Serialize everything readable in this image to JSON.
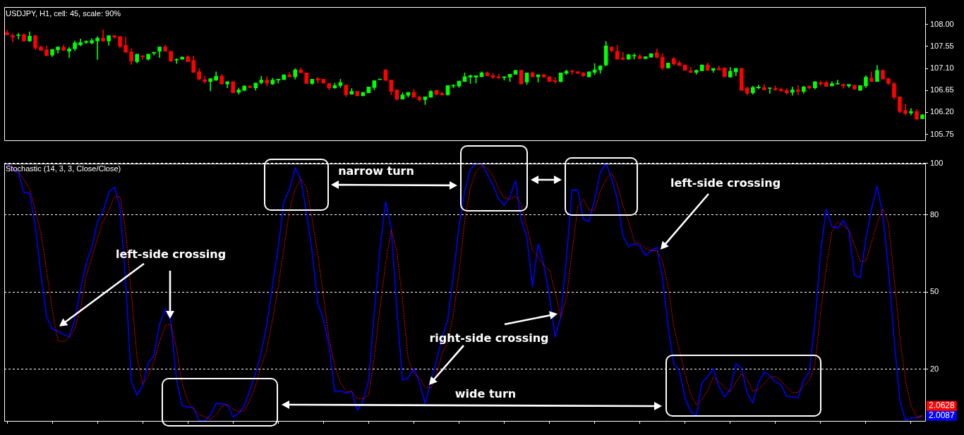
{
  "chart_data": [
    {
      "type": "candlestick",
      "title": "USDJPY, H1, cell: 45, scale: 90%",
      "categories": [
        null,
        null,
        null,
        null,
        null,
        null,
        null,
        null,
        null,
        null,
        null,
        null,
        null,
        null,
        null,
        null,
        null,
        null,
        null,
        null,
        null,
        null,
        null,
        null,
        null,
        null,
        null,
        null,
        null,
        null,
        null,
        null,
        null,
        null,
        null,
        null,
        null,
        null,
        null,
        null,
        null,
        null,
        null,
        null,
        null,
        null,
        null,
        null,
        null,
        null,
        null,
        null,
        null,
        null,
        null,
        null,
        null,
        null,
        null,
        null,
        null,
        null,
        null,
        null,
        null,
        null,
        null,
        null,
        null,
        null,
        null,
        null,
        null,
        null,
        null,
        null,
        null,
        null,
        null,
        null,
        null,
        null,
        null,
        null,
        null,
        null,
        null,
        null,
        null,
        null,
        null,
        null,
        null,
        null,
        null,
        null,
        null,
        null,
        null,
        null,
        null,
        null,
        null,
        null,
        null,
        null,
        null,
        null,
        null,
        null,
        null,
        null,
        null,
        null,
        null,
        null,
        null,
        null,
        null,
        null,
        null,
        null,
        null,
        null,
        null,
        null,
        null,
        null,
        null,
        null,
        null,
        null,
        null,
        null,
        null,
        null,
        null,
        null,
        null,
        null,
        null,
        null,
        null,
        null,
        null,
        null,
        null,
        null,
        null,
        null,
        null,
        null,
        null,
        null,
        null,
        null,
        null,
        null,
        null,
        null,
        null,
        null,
        null
      ],
      "ohlc": [
        [
          107.83,
          107.88,
          107.78,
          107.79
        ],
        [
          107.77,
          107.81,
          107.64,
          107.74
        ],
        [
          107.77,
          107.82,
          107.7,
          107.77
        ],
        [
          107.79,
          107.81,
          107.66,
          107.66
        ],
        [
          107.66,
          107.85,
          107.65,
          107.76
        ],
        [
          107.77,
          107.77,
          107.48,
          107.52
        ],
        [
          107.54,
          107.56,
          107.47,
          107.47
        ],
        [
          107.48,
          107.56,
          107.36,
          107.36
        ],
        [
          107.37,
          107.49,
          107.34,
          107.49
        ],
        [
          107.48,
          107.54,
          107.41,
          107.54
        ],
        [
          107.53,
          107.58,
          107.47,
          107.47
        ],
        [
          107.45,
          107.53,
          107.32,
          107.5
        ],
        [
          107.5,
          107.66,
          107.46,
          107.62
        ],
        [
          107.58,
          107.7,
          107.56,
          107.63
        ],
        [
          107.63,
          107.67,
          107.61,
          107.65
        ],
        [
          107.62,
          107.71,
          107.6,
          107.67
        ],
        [
          107.66,
          107.75,
          107.28,
          107.72
        ],
        [
          107.72,
          107.89,
          107.65,
          107.66
        ],
        [
          107.66,
          107.77,
          107.57,
          107.77
        ],
        [
          107.77,
          107.77,
          107.71,
          107.74
        ],
        [
          107.75,
          107.75,
          107.52,
          107.55
        ],
        [
          107.57,
          107.74,
          107.43,
          107.43
        ],
        [
          107.44,
          107.5,
          107.18,
          107.25
        ],
        [
          107.24,
          107.39,
          107.21,
          107.39
        ],
        [
          107.36,
          107.36,
          107.28,
          107.34
        ],
        [
          107.29,
          107.39,
          107.27,
          107.39
        ],
        [
          107.41,
          107.43,
          107.37,
          107.43
        ],
        [
          107.45,
          107.54,
          107.32,
          107.54
        ],
        [
          107.54,
          107.58,
          107.45,
          107.45
        ],
        [
          107.45,
          107.45,
          107.24,
          107.25
        ],
        [
          107.27,
          107.3,
          107.2,
          107.28
        ],
        [
          107.29,
          107.34,
          107.28,
          107.33
        ],
        [
          107.34,
          107.36,
          107.24,
          107.24
        ],
        [
          107.26,
          107.35,
          107.02,
          107.02
        ],
        [
          107.03,
          107.1,
          106.86,
          106.88
        ],
        [
          106.87,
          106.94,
          106.8,
          106.83
        ],
        [
          106.83,
          106.89,
          106.64,
          106.89
        ],
        [
          106.86,
          107.03,
          106.85,
          106.94
        ],
        [
          106.94,
          106.98,
          106.78,
          106.78
        ],
        [
          106.78,
          106.83,
          106.7,
          106.83
        ],
        [
          106.83,
          106.83,
          106.6,
          106.6
        ],
        [
          106.61,
          106.7,
          106.57,
          106.66
        ],
        [
          106.65,
          106.75,
          106.64,
          106.74
        ],
        [
          106.74,
          106.75,
          106.7,
          106.71
        ],
        [
          106.7,
          106.8,
          106.65,
          106.8
        ],
        [
          106.81,
          106.94,
          106.78,
          106.86
        ],
        [
          106.86,
          106.93,
          106.74,
          106.8
        ],
        [
          106.78,
          106.9,
          106.77,
          106.86
        ],
        [
          106.86,
          106.88,
          106.8,
          106.88
        ],
        [
          106.87,
          106.97,
          106.87,
          106.97
        ],
        [
          106.97,
          107.02,
          106.93,
          106.93
        ],
        [
          106.93,
          107.1,
          106.88,
          107.07
        ],
        [
          107.07,
          107.11,
          107.01,
          107.01
        ],
        [
          107.01,
          107.01,
          106.79,
          106.79
        ],
        [
          106.79,
          106.88,
          106.77,
          106.88
        ],
        [
          106.89,
          106.92,
          106.8,
          106.86
        ],
        [
          106.88,
          106.88,
          106.8,
          106.8
        ],
        [
          106.79,
          106.8,
          106.66,
          106.7
        ],
        [
          106.7,
          106.8,
          106.69,
          106.75
        ],
        [
          106.75,
          106.88,
          106.71,
          106.81
        ],
        [
          106.76,
          106.76,
          106.52,
          106.56
        ],
        [
          106.57,
          106.69,
          106.57,
          106.63
        ],
        [
          106.63,
          106.63,
          106.54,
          106.54
        ],
        [
          106.54,
          106.61,
          106.54,
          106.61
        ],
        [
          106.6,
          106.72,
          106.6,
          106.72
        ],
        [
          106.71,
          106.85,
          106.66,
          106.85
        ],
        [
          106.87,
          106.88,
          106.87,
          106.88
        ],
        [
          107.07,
          107.07,
          106.84,
          106.86
        ],
        [
          106.86,
          106.86,
          106.56,
          106.63
        ],
        [
          106.66,
          106.66,
          106.45,
          106.47
        ],
        [
          106.47,
          106.6,
          106.47,
          106.56
        ],
        [
          106.55,
          106.61,
          106.51,
          106.61
        ],
        [
          106.61,
          106.67,
          106.51,
          106.51
        ],
        [
          106.51,
          106.54,
          106.43,
          106.46
        ],
        [
          106.46,
          106.52,
          106.36,
          106.52
        ],
        [
          106.51,
          106.65,
          106.51,
          106.63
        ],
        [
          106.65,
          106.66,
          106.55,
          106.57
        ],
        [
          106.59,
          106.62,
          106.55,
          106.56
        ],
        [
          106.56,
          106.75,
          106.55,
          106.75
        ],
        [
          106.74,
          106.77,
          106.7,
          106.75
        ],
        [
          106.74,
          106.84,
          106.71,
          106.84
        ],
        [
          106.83,
          107.01,
          106.83,
          106.93
        ],
        [
          106.92,
          106.97,
          106.79,
          106.95
        ],
        [
          106.92,
          106.95,
          106.8,
          106.95
        ],
        [
          106.93,
          107.03,
          106.93,
          107.01
        ],
        [
          107.01,
          107.03,
          106.95,
          106.95
        ],
        [
          106.95,
          107.0,
          106.89,
          106.92
        ],
        [
          106.93,
          106.98,
          106.89,
          106.91
        ],
        [
          106.91,
          106.93,
          106.86,
          106.93
        ],
        [
          106.92,
          106.98,
          106.83,
          106.98
        ],
        [
          106.98,
          107.06,
          106.98,
          107.06
        ],
        [
          107.06,
          107.07,
          106.78,
          106.78
        ],
        [
          106.82,
          107.01,
          106.77,
          107.01
        ],
        [
          107.01,
          107.03,
          106.92,
          106.93
        ],
        [
          106.93,
          106.97,
          106.82,
          106.97
        ],
        [
          106.97,
          106.98,
          106.91,
          106.93
        ],
        [
          106.93,
          106.93,
          106.83,
          106.83
        ],
        [
          106.85,
          106.92,
          106.79,
          106.83
        ],
        [
          106.83,
          107.01,
          106.82,
          107.01
        ],
        [
          107.0,
          107.07,
          106.97,
          107.04
        ],
        [
          107.05,
          107.07,
          106.98,
          107.03
        ],
        [
          107.03,
          107.04,
          106.99,
          107.0
        ],
        [
          107.01,
          107.02,
          106.93,
          106.95
        ],
        [
          106.93,
          107.03,
          106.92,
          107.03
        ],
        [
          107.02,
          107.2,
          106.97,
          107.07
        ],
        [
          107.07,
          107.16,
          107.0,
          107.15
        ],
        [
          107.17,
          107.65,
          107.15,
          107.56
        ],
        [
          107.54,
          107.54,
          107.43,
          107.46
        ],
        [
          107.45,
          107.57,
          107.29,
          107.29
        ],
        [
          107.31,
          107.43,
          107.27,
          107.29
        ],
        [
          107.29,
          107.39,
          107.28,
          107.38
        ],
        [
          107.35,
          107.4,
          107.29,
          107.36
        ],
        [
          107.35,
          107.39,
          107.3,
          107.3
        ],
        [
          107.3,
          107.34,
          107.3,
          107.34
        ],
        [
          107.33,
          107.4,
          107.33,
          107.4
        ],
        [
          107.42,
          107.5,
          107.31,
          107.33
        ],
        [
          107.33,
          107.4,
          107.07,
          107.11
        ],
        [
          107.11,
          107.21,
          107.11,
          107.21
        ],
        [
          107.3,
          107.33,
          107.16,
          107.19
        ],
        [
          107.21,
          107.25,
          107.16,
          107.16
        ],
        [
          107.17,
          107.17,
          107.06,
          107.06
        ],
        [
          107.05,
          107.12,
          107.01,
          107.02
        ],
        [
          107.02,
          107.07,
          106.98,
          107.06
        ],
        [
          107.05,
          107.17,
          107.05,
          107.17
        ],
        [
          107.17,
          107.21,
          107.05,
          107.06
        ],
        [
          107.06,
          107.1,
          107.02,
          107.1
        ],
        [
          107.1,
          107.15,
          107.07,
          107.07
        ],
        [
          107.11,
          107.11,
          106.93,
          106.93
        ],
        [
          106.92,
          107.12,
          106.92,
          107.04
        ],
        [
          107.03,
          107.1,
          106.95,
          107.1
        ],
        [
          107.1,
          107.1,
          106.65,
          106.65
        ],
        [
          106.7,
          106.72,
          106.56,
          106.59
        ],
        [
          106.6,
          106.74,
          106.57,
          106.71
        ],
        [
          106.7,
          106.76,
          106.68,
          106.72
        ],
        [
          106.71,
          106.77,
          106.66,
          106.66
        ],
        [
          106.69,
          106.7,
          106.59,
          106.7
        ],
        [
          106.69,
          106.74,
          106.65,
          106.66
        ],
        [
          106.67,
          106.7,
          106.63,
          106.64
        ],
        [
          106.65,
          106.69,
          106.57,
          106.6
        ],
        [
          106.61,
          106.72,
          106.55,
          106.66
        ],
        [
          106.66,
          106.75,
          106.56,
          106.63
        ],
        [
          106.63,
          106.74,
          106.59,
          106.72
        ],
        [
          106.73,
          106.75,
          106.68,
          106.7
        ],
        [
          106.7,
          106.83,
          106.68,
          106.83
        ],
        [
          106.81,
          106.84,
          106.75,
          106.78
        ],
        [
          106.81,
          106.84,
          106.73,
          106.73
        ],
        [
          106.74,
          106.83,
          106.74,
          106.79
        ],
        [
          106.78,
          106.86,
          106.77,
          106.79
        ],
        [
          106.77,
          106.79,
          106.69,
          106.74
        ],
        [
          106.74,
          106.77,
          106.71,
          106.77
        ],
        [
          106.75,
          106.77,
          106.66,
          106.68
        ],
        [
          106.65,
          106.75,
          106.65,
          106.75
        ],
        [
          106.74,
          106.95,
          106.71,
          106.92
        ],
        [
          106.9,
          107.03,
          106.83,
          106.83
        ],
        [
          106.83,
          107.16,
          106.83,
          107.06
        ],
        [
          107.06,
          107.07,
          106.88,
          106.88
        ],
        [
          106.89,
          106.9,
          106.77,
          106.79
        ],
        [
          106.79,
          106.81,
          106.47,
          106.51
        ],
        [
          106.52,
          106.52,
          106.19,
          106.22
        ],
        [
          106.24,
          106.37,
          106.15,
          106.18
        ],
        [
          106.19,
          106.28,
          106.15,
          106.22
        ],
        [
          106.22,
          106.26,
          106.06,
          106.06
        ],
        [
          106.07,
          106.15,
          106.07,
          106.15
        ]
      ],
      "colors": [
        "#ff0000",
        "#ff0000",
        "#00ff00",
        "#ff0000",
        "#00ff00",
        "#ff0000",
        "#ff0000",
        "#ff0000",
        "#00ff00",
        "#00ff00",
        "#ff0000",
        "#00ff00",
        "#00ff00",
        "#00ff00",
        "#00ff00",
        "#00ff00",
        "#00ff00",
        "#ff0000",
        "#00ff00",
        "#ff0000",
        "#ff0000",
        "#ff0000",
        "#ff0000",
        "#00ff00",
        "#ff0000",
        "#00ff00",
        "#00ff00",
        "#00ff00",
        "#ff0000",
        "#ff0000",
        "#00ff00",
        "#00ff00",
        "#ff0000",
        "#ff0000",
        "#ff0000",
        "#ff0000",
        "#00ff00",
        "#00ff00",
        "#ff0000",
        "#00ff00",
        "#ff0000",
        "#00ff00",
        "#00ff00",
        "#ff0000",
        "#00ff00",
        "#00ff00",
        "#ff0000",
        "#00ff00",
        "#00ff00",
        "#00ff00",
        "#ff0000",
        "#00ff00",
        "#ff0000",
        "#ff0000",
        "#00ff00",
        "#ff0000",
        "#ff0000",
        "#ff0000",
        "#00ff00",
        "#00ff00",
        "#ff0000",
        "#00ff00",
        "#ff0000",
        "#00ff00",
        "#00ff00",
        "#00ff00",
        "#00ff00",
        "#ff0000",
        "#ff0000",
        "#ff0000",
        "#00ff00",
        "#00ff00",
        "#ff0000",
        "#ff0000",
        "#00ff00",
        "#00ff00",
        "#ff0000",
        "#ff0000",
        "#00ff00",
        "#00ff00",
        "#00ff00",
        "#00ff00",
        "#00ff00",
        "#00ff00",
        "#00ff00",
        "#ff0000",
        "#ff0000",
        "#ff0000",
        "#00ff00",
        "#00ff00",
        "#00ff00",
        "#ff0000",
        "#00ff00",
        "#ff0000",
        "#00ff00",
        "#ff0000",
        "#ff0000",
        "#ff0000",
        "#00ff00",
        "#00ff00",
        "#ff0000",
        "#ff0000",
        "#ff0000",
        "#00ff00",
        "#00ff00",
        "#00ff00",
        "#00ff00",
        "#ff0000",
        "#ff0000",
        "#ff0000",
        "#00ff00",
        "#00ff00",
        "#ff0000",
        "#00ff00",
        "#00ff00",
        "#ff0000",
        "#ff0000",
        "#00ff00",
        "#ff0000",
        "#ff0000",
        "#ff0000",
        "#ff0000",
        "#00ff00",
        "#00ff00",
        "#ff0000",
        "#00ff00",
        "#ff0000",
        "#ff0000",
        "#00ff00",
        "#00ff00",
        "#ff0000",
        "#ff0000",
        "#00ff00",
        "#00ff00",
        "#ff0000",
        "#00ff00",
        "#ff0000",
        "#ff0000",
        "#ff0000",
        "#00ff00",
        "#ff0000",
        "#00ff00",
        "#ff0000",
        "#00ff00",
        "#ff0000",
        "#ff0000",
        "#00ff00",
        "#00ff00",
        "#ff0000",
        "#00ff00",
        "#ff0000",
        "#00ff00",
        "#00ff00",
        "#ff0000",
        "#00ff00",
        "#ff0000",
        "#ff0000",
        "#ff0000",
        "#ff0000",
        "#ff0000",
        "#00ff00",
        "#ff0000",
        "#00ff00"
      ],
      "ylim": [
        105.63,
        108.36
      ],
      "yticks": [
        105.75,
        {
          "value": 106.2,
          "label": "106.20"
        },
        106.65,
        {
          "value": 107.1,
          "label": "107.10"
        },
        107.55,
        {
          "value": 108.0,
          "label": "108.00"
        }
      ],
      "grid": false,
      "legend": false,
      "tick_labels": "y"
    },
    {
      "type": "line",
      "title": "Stochastic (14, 3, 3, Close/Close)",
      "categories": [
        null,
        null,
        null,
        null,
        null,
        null,
        null,
        null,
        null,
        null,
        null,
        null,
        null,
        null,
        null,
        null,
        null,
        null,
        null,
        null,
        null,
        null,
        null,
        null,
        null,
        null,
        null,
        null,
        null,
        null,
        null,
        null,
        null,
        null,
        null,
        null,
        null,
        null,
        null,
        null,
        null,
        null,
        null,
        null,
        null,
        null,
        null,
        null,
        null,
        null,
        null,
        null,
        null,
        null,
        null,
        null,
        null,
        null,
        null,
        null,
        null,
        null,
        null,
        null,
        null,
        null,
        null,
        null,
        null,
        null,
        null,
        null,
        null,
        null,
        null,
        null,
        null,
        null,
        null,
        null,
        null,
        null,
        null,
        null,
        null,
        null,
        null,
        null,
        null,
        null,
        null,
        null,
        null,
        null,
        null,
        null,
        null,
        null,
        null,
        null,
        null,
        null,
        null,
        null,
        null,
        null,
        null,
        null,
        null,
        null,
        null,
        null,
        null,
        null,
        null,
        null,
        null,
        null,
        null,
        null,
        null,
        null,
        null,
        null,
        null,
        null,
        null,
        null,
        null,
        null,
        null,
        null,
        null,
        null,
        null,
        null,
        null,
        null,
        null,
        null,
        null,
        null,
        null,
        null,
        null,
        null,
        null,
        null,
        null,
        null,
        null,
        null,
        null,
        null,
        null,
        null,
        null,
        null,
        null,
        null,
        null,
        null,
        null
      ],
      "series": [
        {
          "color": "#0000ff",
          "line_style": "solid",
          "values": [
            100,
            97.7,
            96.4,
            88.7,
            88.4,
            75.6,
            56.6,
            40.3,
            35.7,
            34.8,
            33.5,
            32.6,
            39.4,
            51.1,
            61.1,
            67.4,
            77.4,
            81.5,
            88.7,
            90.8,
            82.8,
            53.8,
            15.4,
            10.0,
            13.6,
            22.6,
            25.3,
            37.6,
            43.4,
            38.5,
            15.8,
            5.9,
            5.4,
            5.0,
            0,
            0,
            2.3,
            6.8,
            6.6,
            6.3,
            1.5,
            3.0,
            5.9,
            12.2,
            18.5,
            26.7,
            37.5,
            52.9,
            67.4,
            85.1,
            90.0,
            98.2,
            93.7,
            81.0,
            65.6,
            45.7,
            39.4,
            29.0,
            11.3,
            11.7,
            10.8,
            11.5,
            4.1,
            7.7,
            15.8,
            42.1,
            66.5,
            85.1,
            74.6,
            43.0,
            15.8,
            16.7,
            20.4,
            14.9,
            6.8,
            15.4,
            23.5,
            32.1,
            39.4,
            56.6,
            75.6,
            89.1,
            97.7,
            100,
            100,
            95.7,
            91.4,
            86.2,
            83.7,
            87.1,
            93.2,
            77.8,
            71.5,
            52.0,
            68.8,
            60.6,
            48.4,
            32.6,
            40.3,
            62.9,
            89.6,
            89.6,
            78.3,
            77.4,
            86.0,
            96.4,
            100,
            94.1,
            86.0,
            71.9,
            67.6,
            68.8,
            67.9,
            64.2,
            66.1,
            67.4,
            55.6,
            36.6,
            22.2,
            19.4,
            9.0,
            3.6,
            2.0,
            14.9,
            17.2,
            20.4,
            13.3,
            9.3,
            12.2,
            22.2,
            20.4,
            10.6,
            7.0,
            14.9,
            19.0,
            17.6,
            15.1,
            14.0,
            9.5,
            9.3,
            8.9,
            15.8,
            19.0,
            38.5,
            65.6,
            82.3,
            75.4,
            74.8,
            77.8,
            73.7,
            56.6,
            55.6,
            70.6,
            82.3,
            91.1,
            80.1,
            58.8,
            32.1,
            8.1,
            0.2,
            1.2,
            1.1,
            2.0087
          ],
          "value_labels": [
            null,
            null,
            null,
            null,
            null,
            null,
            null,
            null,
            null,
            null,
            null,
            null,
            null,
            null,
            null,
            null,
            null,
            null,
            null,
            null,
            null,
            null,
            null,
            null,
            null,
            null,
            null,
            null,
            null,
            null,
            null,
            null,
            null,
            null,
            null,
            null,
            null,
            null,
            null,
            null,
            null,
            null,
            null,
            null,
            null,
            null,
            null,
            null,
            null,
            null,
            null,
            null,
            null,
            null,
            null,
            null,
            null,
            null,
            null,
            null,
            null,
            null,
            null,
            null,
            null,
            null,
            null,
            null,
            null,
            null,
            null,
            null,
            null,
            null,
            null,
            null,
            null,
            null,
            null,
            null,
            null,
            null,
            null,
            null,
            null,
            null,
            null,
            null,
            null,
            null,
            null,
            null,
            null,
            null,
            null,
            null,
            null,
            null,
            null,
            null,
            null,
            null,
            null,
            null,
            null,
            null,
            null,
            null,
            null,
            null,
            null,
            null,
            null,
            null,
            null,
            null,
            null,
            null,
            null,
            null,
            null,
            null,
            null,
            null,
            null,
            null,
            null,
            null,
            null,
            null,
            null,
            null,
            null,
            null,
            null,
            null,
            null,
            null,
            null,
            null,
            null,
            null,
            null,
            null,
            null,
            null,
            null,
            null,
            null,
            null,
            null,
            null,
            null,
            null,
            null,
            null,
            null,
            null,
            null,
            null,
            null,
            null,
            "2.0087"
          ]
        },
        {
          "color": "#ff0000",
          "line_style": "dotted",
          "values": [
            100,
            98.6,
            96.6,
            93.7,
            90.2,
            81.7,
            72.9,
            58.4,
            43.0,
            31.2,
            30.6,
            32.3,
            35.9,
            43.4,
            56.1,
            63.3,
            70.6,
            77.5,
            81.7,
            87.1,
            86.9,
            73.7,
            49.3,
            24.9,
            14.2,
            17.5,
            22.6,
            30.8,
            37.1,
            37.6,
            28.0,
            14.5,
            7.5,
            4.5,
            2.4,
            1.7,
            0.6,
            2.4,
            5.7,
            6.3,
            4.7,
            3.6,
            4.1,
            8.1,
            13.6,
            21.3,
            28.0,
            39.4,
            52.0,
            67.0,
            81.9,
            90.0,
            93.8,
            90.9,
            78.3,
            64.7,
            48.4,
            31.7,
            21.3,
            14.9,
            11.5,
            11.3,
            8.6,
            8.6,
            10.0,
            24.9,
            43.4,
            61.1,
            74.2,
            65.6,
            46.6,
            24.0,
            18.5,
            16.7,
            13.1,
            12.7,
            18.1,
            26.2,
            30.3,
            41.2,
            57.5,
            77.8,
            90.5,
            96.6,
            99.1,
            98.2,
            95.2,
            90.2,
            86.6,
            86.0,
            87.3,
            84.2,
            75.6,
            66.1,
            63.8,
            60.3,
            58.5,
            50.2,
            40.3,
            47.5,
            65.6,
            82.8,
            86.0,
            81.9,
            81.9,
            89.1,
            93.7,
            96.4,
            91.8,
            83.7,
            77.5,
            69.7,
            68.8,
            67.0,
            66.1,
            66.1,
            62.0,
            52.5,
            36.6,
            27.6,
            18.1,
            10.4,
            6.1,
            8.4,
            11.8,
            16.9,
            15.2,
            12.9,
            11.3,
            14.9,
            18.4,
            16.0,
            11.5,
            12.2,
            14.5,
            16.9,
            17.2,
            15.6,
            13.1,
            10.9,
            11.1,
            13.6,
            15.6,
            22.2,
            42.1,
            59.3,
            73.7,
            77.2,
            75.7,
            74.2,
            68.3,
            62.0,
            62.0,
            69.2,
            76.5,
            82.3,
            76.9,
            55.6,
            33.0,
            15.8,
            5.9,
            1.3,
            2.0628
          ],
          "value_labels": [
            null,
            null,
            null,
            null,
            null,
            null,
            null,
            null,
            null,
            null,
            null,
            null,
            null,
            null,
            null,
            null,
            null,
            null,
            null,
            null,
            null,
            null,
            null,
            null,
            null,
            null,
            null,
            null,
            null,
            null,
            null,
            null,
            null,
            null,
            null,
            null,
            null,
            null,
            null,
            null,
            null,
            null,
            null,
            null,
            null,
            null,
            null,
            null,
            null,
            null,
            null,
            null,
            null,
            null,
            null,
            null,
            null,
            null,
            null,
            null,
            null,
            null,
            null,
            null,
            null,
            null,
            null,
            null,
            null,
            null,
            null,
            null,
            null,
            null,
            null,
            null,
            null,
            null,
            null,
            null,
            null,
            null,
            null,
            null,
            null,
            null,
            null,
            null,
            null,
            null,
            null,
            null,
            null,
            null,
            null,
            null,
            null,
            null,
            null,
            null,
            null,
            null,
            null,
            null,
            null,
            null,
            null,
            null,
            null,
            null,
            null,
            null,
            null,
            null,
            null,
            null,
            null,
            null,
            null,
            null,
            null,
            null,
            null,
            null,
            null,
            null,
            null,
            null,
            null,
            null,
            null,
            null,
            null,
            null,
            null,
            null,
            null,
            null,
            null,
            null,
            null,
            null,
            null,
            null,
            null,
            null,
            null,
            null,
            null,
            null,
            null,
            null,
            null,
            null,
            null,
            null,
            null,
            null,
            null,
            null,
            null,
            null,
            "2.0628"
          ]
        }
      ],
      "ylim": [
        0,
        100
      ],
      "yticks": [
        20,
        50,
        80,
        100
      ],
      "grid": "y",
      "legend": false,
      "marker": "none",
      "tick_labels": "y",
      "annotations": [
        "left-side crossing",
        "narrow turn",
        "left-side crossing",
        "right-side crossing",
        "wide turn"
      ]
    }
  ]
}
